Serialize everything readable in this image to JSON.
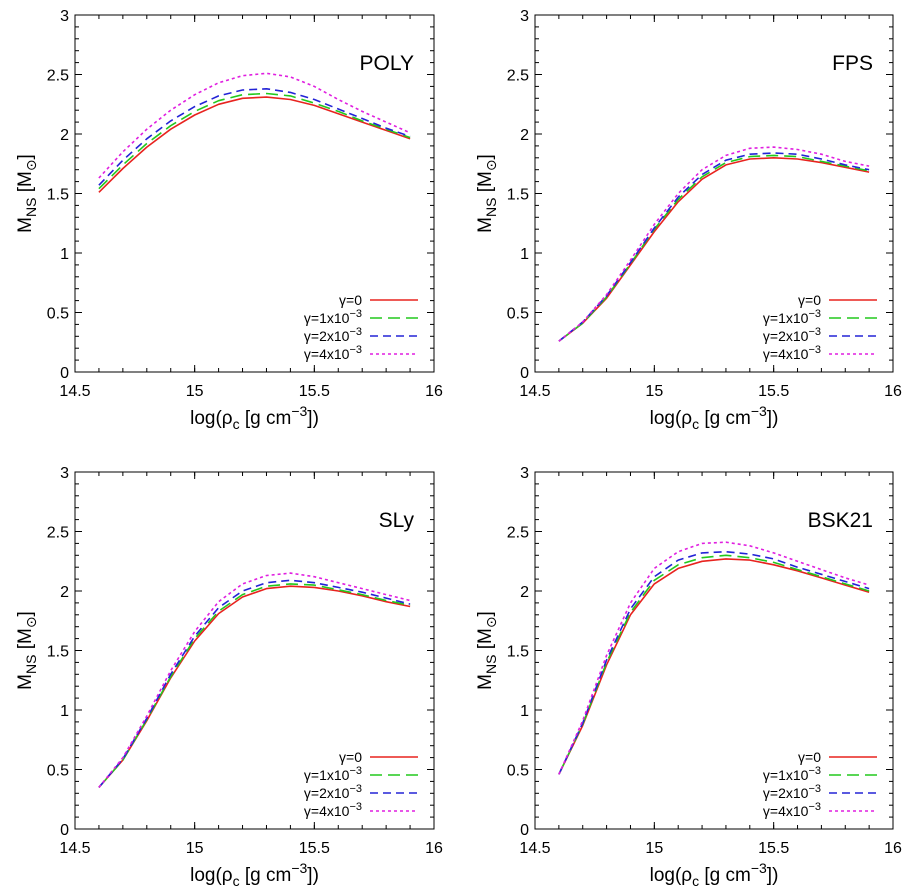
{
  "figure": {
    "legend_labels": [
      "γ=0",
      "γ=1x10",
      "γ=2x10",
      "γ=4x10"
    ],
    "legend_exponents": [
      "",
      "−3",
      "−3",
      "−3"
    ]
  },
  "chart_data": [
    {
      "type": "line",
      "title": "POLY",
      "xlabel": "log(ρc [g cm−3])",
      "ylabel": "MNS [M⊙]",
      "xlim": [
        14.5,
        16
      ],
      "ylim": [
        0,
        3
      ],
      "xticks": [
        "14.5",
        "15",
        "15.5",
        "16"
      ],
      "yticks": [
        "0",
        "0.5",
        "1",
        "1.5",
        "2",
        "2.5",
        "3"
      ],
      "grid": false,
      "legend_position": "bottom-right",
      "x": [
        14.6,
        14.7,
        14.8,
        14.9,
        15.0,
        15.1,
        15.2,
        15.3,
        15.4,
        15.5,
        15.6,
        15.7,
        15.8,
        15.9
      ],
      "series": [
        {
          "name": "γ=0",
          "color": "#e8231f",
          "dash": "solid",
          "values": [
            1.51,
            1.71,
            1.89,
            2.04,
            2.16,
            2.25,
            2.3,
            2.31,
            2.29,
            2.24,
            2.17,
            2.1,
            2.03,
            1.96
          ]
        },
        {
          "name": "γ=1x10−3",
          "color": "#22c91d",
          "dash": "long",
          "values": [
            1.54,
            1.74,
            1.92,
            2.07,
            2.19,
            2.28,
            2.33,
            2.34,
            2.32,
            2.26,
            2.19,
            2.11,
            2.04,
            1.97
          ]
        },
        {
          "name": "γ=2x10−3",
          "color": "#2323d6",
          "dash": "medium",
          "values": [
            1.57,
            1.78,
            1.96,
            2.11,
            2.23,
            2.32,
            2.37,
            2.38,
            2.35,
            2.29,
            2.21,
            2.13,
            2.05,
            1.98
          ]
        },
        {
          "name": "γ=4x10−3",
          "color": "#e01fe0",
          "dash": "short",
          "values": [
            1.63,
            1.85,
            2.04,
            2.2,
            2.33,
            2.43,
            2.49,
            2.51,
            2.48,
            2.4,
            2.29,
            2.19,
            2.1,
            2.01
          ]
        }
      ]
    },
    {
      "type": "line",
      "title": "FPS",
      "xlabel": "log(ρc [g cm−3])",
      "ylabel": "MNS [M⊙]",
      "xlim": [
        14.5,
        16
      ],
      "ylim": [
        0,
        3
      ],
      "xticks": [
        "14.5",
        "15",
        "15.5",
        "16"
      ],
      "yticks": [
        "0",
        "0.5",
        "1",
        "1.5",
        "2",
        "2.5",
        "3"
      ],
      "grid": false,
      "legend_position": "bottom-right",
      "x": [
        14.6,
        14.7,
        14.8,
        14.9,
        15.0,
        15.1,
        15.2,
        15.3,
        15.4,
        15.5,
        15.6,
        15.7,
        15.8,
        15.9
      ],
      "series": [
        {
          "name": "γ=0",
          "color": "#e8231f",
          "dash": "solid",
          "values": [
            0.26,
            0.41,
            0.62,
            0.9,
            1.18,
            1.43,
            1.62,
            1.74,
            1.79,
            1.8,
            1.79,
            1.76,
            1.72,
            1.68
          ]
        },
        {
          "name": "γ=1x10−3",
          "color": "#22c91d",
          "dash": "long",
          "values": [
            0.26,
            0.41,
            0.63,
            0.91,
            1.2,
            1.45,
            1.64,
            1.76,
            1.81,
            1.82,
            1.81,
            1.77,
            1.73,
            1.69
          ]
        },
        {
          "name": "γ=2x10−3",
          "color": "#2323d6",
          "dash": "medium",
          "values": [
            0.26,
            0.42,
            0.64,
            0.92,
            1.21,
            1.47,
            1.66,
            1.78,
            1.83,
            1.84,
            1.83,
            1.79,
            1.74,
            1.7
          ]
        },
        {
          "name": "γ=4x10−3",
          "color": "#e01fe0",
          "dash": "short",
          "values": [
            0.26,
            0.42,
            0.65,
            0.94,
            1.24,
            1.5,
            1.7,
            1.82,
            1.88,
            1.89,
            1.87,
            1.83,
            1.77,
            1.73
          ]
        }
      ]
    },
    {
      "type": "line",
      "title": "SLy",
      "xlabel": "log(ρc [g cm−3])",
      "ylabel": "MNS [M⊙]",
      "xlim": [
        14.5,
        16
      ],
      "ylim": [
        0,
        3
      ],
      "xticks": [
        "14.5",
        "15",
        "15.5",
        "16"
      ],
      "yticks": [
        "0",
        "0.5",
        "1",
        "1.5",
        "2",
        "2.5",
        "3"
      ],
      "grid": false,
      "legend_position": "bottom-right",
      "x": [
        14.6,
        14.7,
        14.8,
        14.9,
        15.0,
        15.1,
        15.2,
        15.3,
        15.4,
        15.5,
        15.6,
        15.7,
        15.8,
        15.9
      ],
      "series": [
        {
          "name": "γ=0",
          "color": "#e8231f",
          "dash": "solid",
          "values": [
            0.35,
            0.58,
            0.91,
            1.27,
            1.58,
            1.81,
            1.95,
            2.02,
            2.04,
            2.03,
            2.0,
            1.96,
            1.91,
            1.87
          ]
        },
        {
          "name": "γ=1x10−3",
          "color": "#22c91d",
          "dash": "long",
          "values": [
            0.35,
            0.58,
            0.92,
            1.28,
            1.6,
            1.83,
            1.97,
            2.04,
            2.06,
            2.05,
            2.01,
            1.97,
            1.92,
            1.88
          ]
        },
        {
          "name": "γ=2x10−3",
          "color": "#2323d6",
          "dash": "medium",
          "values": [
            0.35,
            0.59,
            0.93,
            1.3,
            1.62,
            1.86,
            2.0,
            2.07,
            2.09,
            2.07,
            2.03,
            1.99,
            1.94,
            1.89
          ]
        },
        {
          "name": "γ=4x10−3",
          "color": "#e01fe0",
          "dash": "short",
          "values": [
            0.35,
            0.6,
            0.95,
            1.33,
            1.66,
            1.91,
            2.06,
            2.13,
            2.15,
            2.12,
            2.07,
            2.02,
            1.97,
            1.92
          ]
        }
      ]
    },
    {
      "type": "line",
      "title": "BSK21",
      "xlabel": "log(ρc [g cm−3])",
      "ylabel": "MNS [M⊙]",
      "xlim": [
        14.5,
        16
      ],
      "ylim": [
        0,
        3
      ],
      "xticks": [
        "14.5",
        "15",
        "15.5",
        "16"
      ],
      "yticks": [
        "0",
        "0.5",
        "1",
        "1.5",
        "2",
        "2.5",
        "3"
      ],
      "grid": false,
      "legend_position": "bottom-right",
      "x": [
        14.6,
        14.7,
        14.8,
        14.9,
        15.0,
        15.1,
        15.2,
        15.3,
        15.4,
        15.5,
        15.6,
        15.7,
        15.8,
        15.9
      ],
      "series": [
        {
          "name": "γ=0",
          "color": "#e8231f",
          "dash": "solid",
          "values": [
            0.46,
            0.87,
            1.38,
            1.8,
            2.06,
            2.19,
            2.25,
            2.27,
            2.26,
            2.22,
            2.17,
            2.11,
            2.05,
            1.99
          ]
        },
        {
          "name": "γ=1x10−3",
          "color": "#22c91d",
          "dash": "long",
          "values": [
            0.46,
            0.88,
            1.4,
            1.82,
            2.09,
            2.22,
            2.28,
            2.3,
            2.28,
            2.24,
            2.18,
            2.12,
            2.06,
            2.0
          ]
        },
        {
          "name": "γ=2x10−3",
          "color": "#2323d6",
          "dash": "medium",
          "values": [
            0.46,
            0.89,
            1.42,
            1.85,
            2.12,
            2.26,
            2.32,
            2.33,
            2.31,
            2.27,
            2.2,
            2.14,
            2.08,
            2.02
          ]
        },
        {
          "name": "γ=4x10−3",
          "color": "#e01fe0",
          "dash": "short",
          "values": [
            0.46,
            0.91,
            1.46,
            1.9,
            2.19,
            2.33,
            2.4,
            2.41,
            2.38,
            2.32,
            2.25,
            2.18,
            2.11,
            2.05
          ]
        }
      ]
    }
  ]
}
